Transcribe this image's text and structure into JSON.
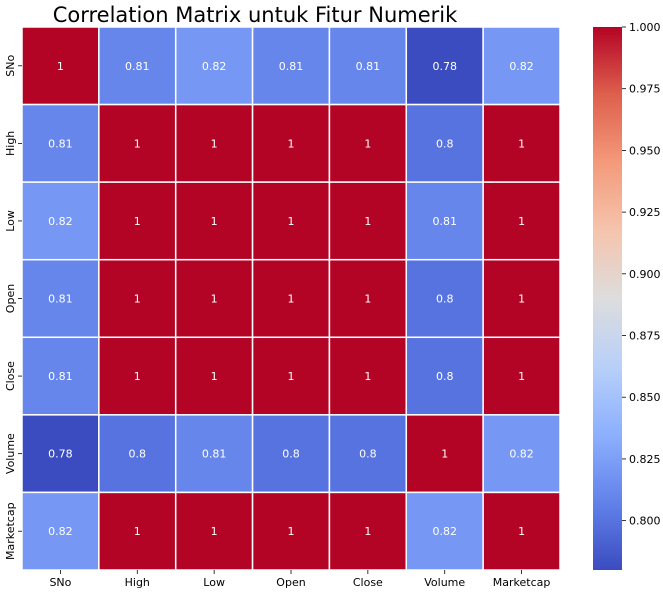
{
  "chart_data": {
    "type": "heatmap",
    "title": "Correlation Matrix untuk Fitur Numerik",
    "xlabel": "",
    "ylabel": "",
    "x_categories": [
      "SNo",
      "High",
      "Low",
      "Open",
      "Close",
      "Volume",
      "Marketcap"
    ],
    "y_categories": [
      "SNo",
      "High",
      "Low",
      "Open",
      "Close",
      "Volume",
      "Marketcap"
    ],
    "values": [
      [
        1,
        0.81,
        0.82,
        0.81,
        0.81,
        0.78,
        0.82
      ],
      [
        0.81,
        1,
        1,
        1,
        1,
        0.8,
        1
      ],
      [
        0.82,
        1,
        1,
        1,
        1,
        0.81,
        1
      ],
      [
        0.81,
        1,
        1,
        1,
        1,
        0.8,
        1
      ],
      [
        0.81,
        1,
        1,
        1,
        1,
        0.8,
        1
      ],
      [
        0.78,
        0.8,
        0.81,
        0.8,
        0.8,
        1,
        0.82
      ],
      [
        0.82,
        1,
        1,
        1,
        1,
        0.82,
        1
      ]
    ],
    "colormap": "coolwarm",
    "vmin": 0.78,
    "vmax": 1.0,
    "colorbar_ticks": [
      "0.800",
      "0.825",
      "0.850",
      "0.875",
      "0.900",
      "0.925",
      "0.950",
      "0.975",
      "1.000"
    ],
    "annotations": true,
    "grid": false
  }
}
